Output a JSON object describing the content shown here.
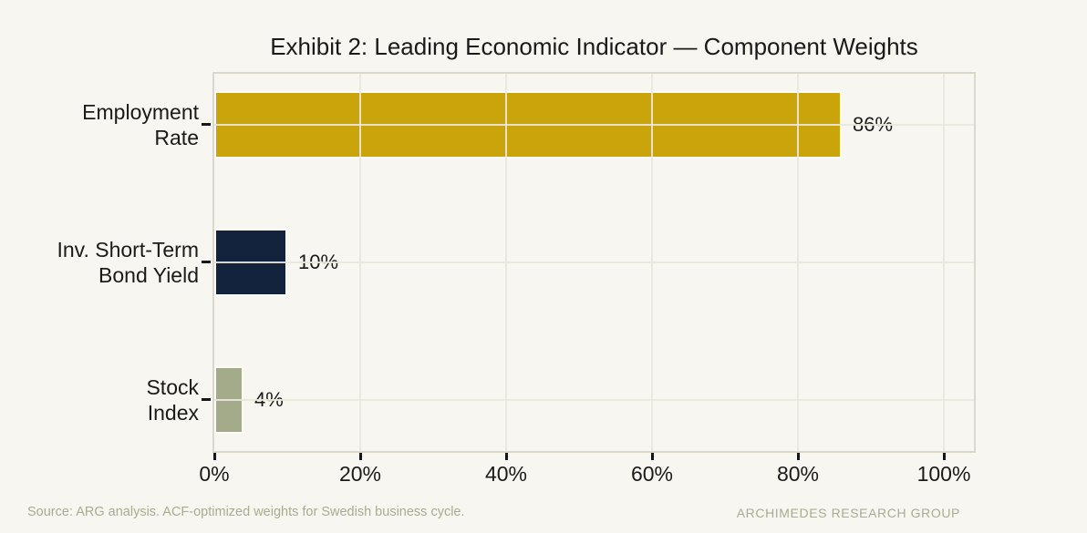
{
  "chart_data": {
    "type": "bar",
    "orientation": "horizontal",
    "title": "Exhibit 2: Leading Economic Indicator — Component Weights",
    "categories": [
      "Employment Rate",
      "Inv. Short-Term Bond Yield",
      "Stock Index"
    ],
    "category_label_lines": [
      [
        "Employment",
        "Rate"
      ],
      [
        "Inv. Short-Term",
        "Bond Yield"
      ],
      [
        "Stock",
        "Index"
      ]
    ],
    "values": [
      86,
      10,
      4
    ],
    "value_labels": [
      "86%",
      "10%",
      "4%"
    ],
    "bar_colors": [
      "#C9A40A",
      "#13223D",
      "#A4AB8A"
    ],
    "xlabel": "",
    "ylabel": "",
    "x_tick_values": [
      0,
      20,
      40,
      60,
      80,
      100
    ],
    "x_tick_labels": [
      "0%",
      "20%",
      "40%",
      "60%",
      "80%",
      "100%"
    ],
    "xlim": [
      0,
      104.6
    ],
    "grid": "vertical at major x ticks and horizontal at category centers, drawn over bars",
    "legend": "none"
  },
  "footer": {
    "source": "Source: ARG analysis. ACF-optimized weights for Swedish business cycle.",
    "brand": "ARCHIMEDES RESEARCH GROUP"
  },
  "colors": {
    "background": "#F8F6F0",
    "text": "#1A1A1A",
    "gridline": "#E9E6DB",
    "plot_border": "#DBD7CA",
    "bar_outline": "#FCFBF7",
    "footer_text": "#A9AC90",
    "gold": "#C9A40A",
    "navy": "#13223D",
    "sage": "#A4AB8A"
  }
}
